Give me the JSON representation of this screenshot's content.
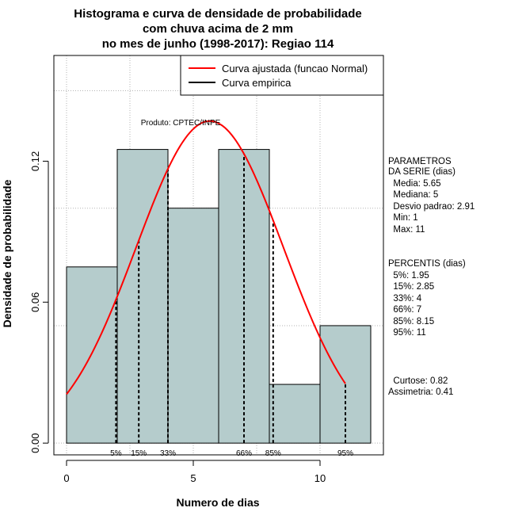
{
  "chart_data": {
    "type": "histogram",
    "title": [
      "Histograma e curva de densidade de probabilidade",
      "com chuva acima de 2 mm",
      "no mes de junho (1998-2017): Regiao 114"
    ],
    "xlabel": "Numero de dias",
    "ylabel": "Densidade de probabilidade",
    "xlim": [
      -0.5,
      12.5
    ],
    "ylim": [
      -0.005,
      0.165
    ],
    "x_ticks": [
      0,
      5,
      10
    ],
    "y_ticks": [
      0.0,
      0.06,
      0.12
    ],
    "x_tick_labels": [
      "0",
      "5",
      "10"
    ],
    "y_tick_labels": [
      "0.00",
      "0.06",
      "0.12"
    ],
    "grid": true,
    "bins": [
      {
        "from": 0,
        "to": 2,
        "density": 0.075
      },
      {
        "from": 2,
        "to": 4,
        "density": 0.125
      },
      {
        "from": 4,
        "to": 6,
        "density": 0.1
      },
      {
        "from": 6,
        "to": 8,
        "density": 0.125
      },
      {
        "from": 8,
        "to": 10,
        "density": 0.025
      },
      {
        "from": 10,
        "to": 12,
        "density": 0.05
      }
    ],
    "normal_fit": {
      "mean": 5.65,
      "sd": 2.91,
      "x_from": 0,
      "x_to": 11
    },
    "percentile_lines": [
      {
        "label": "5%",
        "x": 1.95
      },
      {
        "label": "15%",
        "x": 2.85
      },
      {
        "label": "33%",
        "x": 4
      },
      {
        "label": "66%",
        "x": 7
      },
      {
        "label": "85%",
        "x": 8.15
      },
      {
        "label": "95%",
        "x": 11
      }
    ],
    "legend": {
      "position": "top-right",
      "entries": [
        {
          "label": "Curva ajustada (funcao Normal)",
          "color": "#ff0000"
        },
        {
          "label": "Curva empirica",
          "color": "#000000"
        }
      ]
    },
    "annotation": "Produto: CPTEC/INPE",
    "colors": {
      "bar_fill": "#b5cccc",
      "curve": "#ff0000",
      "grid": "#b3b3b3"
    }
  },
  "side_panel": {
    "params_lines": [
      "PARAMETROS",
      "DA SERIE (dias)",
      "  Media: 5.65",
      "  Mediana: 5",
      "  Desvio padrao: 2.91",
      "  Min: 1",
      "  Max: 11"
    ],
    "percentis_lines": [
      "PERCENTIS (dias)",
      "  5%: 1.95",
      "  15%: 2.85",
      "  33%: 4",
      "  66%: 7",
      "  85%: 8.15",
      "  95%: 11"
    ],
    "stats_lines": [
      "  Curtose: 0.82",
      "Assimetria: 0.41"
    ]
  }
}
